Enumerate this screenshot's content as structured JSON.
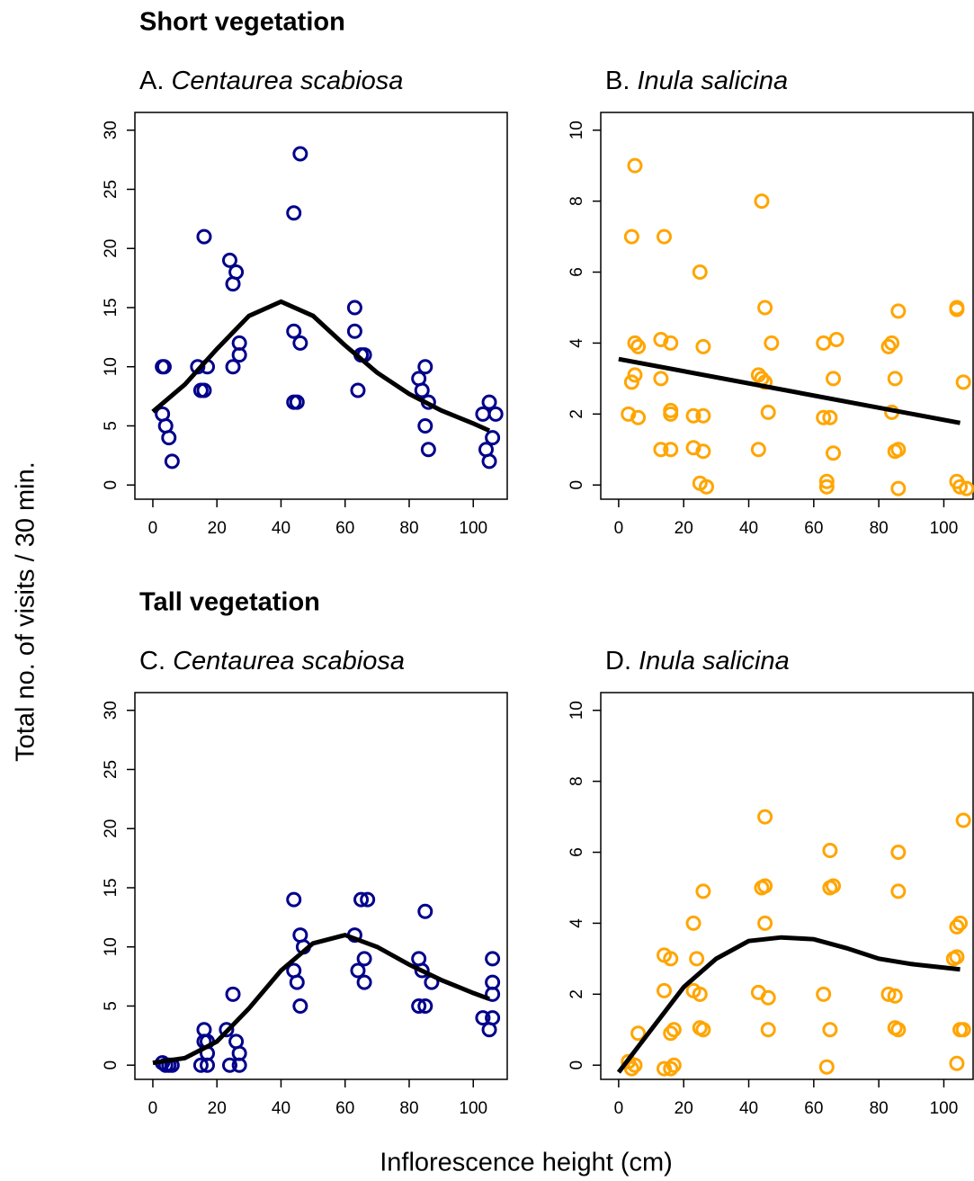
{
  "headings": [
    "Short vegetation",
    "Tall vegetation"
  ],
  "ylabel": "Total no. of visits / 30 min.",
  "xlabel": "Inflorescence height (cm)",
  "chart_data": [
    {
      "type": "scatter",
      "label": "A.",
      "title": "Centaurea scabiosa",
      "color": "#00008b",
      "x": [
        3,
        3.5,
        3,
        4,
        5,
        6,
        14,
        15,
        16,
        16,
        17,
        24,
        25,
        25,
        26,
        27,
        27,
        44,
        44,
        44,
        45,
        46,
        46,
        63,
        63,
        64,
        65,
        66,
        83,
        84,
        85,
        85,
        86,
        86,
        103,
        104,
        105,
        105,
        106,
        107
      ],
      "values": [
        10,
        10,
        6,
        5,
        4,
        2,
        10,
        8,
        21,
        8,
        10,
        19,
        17,
        10,
        18,
        12,
        11,
        23,
        13,
        7,
        7,
        28,
        12,
        15,
        13,
        8,
        11,
        11,
        9,
        8,
        5,
        10,
        3,
        7,
        6,
        3,
        7,
        2,
        4,
        6
      ],
      "fit": {
        "color": "#000000",
        "x": [
          0,
          10,
          20,
          30,
          40,
          50,
          60,
          70,
          80,
          90,
          100,
          105
        ],
        "values": [
          6.2,
          8.5,
          11.5,
          14.3,
          15.5,
          14.3,
          11.8,
          9.5,
          7.7,
          6.3,
          5.2,
          4.6
        ]
      },
      "xlim": [
        -5.6,
        110.6
      ],
      "ylim": [
        -1.2,
        31.5
      ],
      "xticks": [
        0,
        20,
        40,
        60,
        80,
        100
      ],
      "yticks": [
        0,
        5,
        10,
        15,
        20,
        25,
        30
      ]
    },
    {
      "type": "scatter",
      "label": "B.",
      "title": "Inula salicina",
      "color": "#ffa500",
      "x": [
        5,
        4,
        14,
        25,
        44,
        45,
        5,
        6,
        13,
        16,
        26,
        47,
        63,
        67,
        83,
        84,
        86,
        104,
        104,
        4,
        5,
        13,
        43,
        44,
        45,
        66,
        85,
        106,
        3,
        6,
        16,
        16,
        23,
        26,
        46,
        63,
        65,
        84,
        13,
        16,
        23,
        26,
        43,
        66,
        85,
        86,
        25,
        27,
        64,
        64,
        86,
        104,
        105,
        107
      ],
      "values": [
        9,
        7,
        7,
        6,
        8,
        5,
        4,
        3.9,
        4.1,
        4,
        3.9,
        4,
        4,
        4.1,
        3.9,
        4,
        4.9,
        5,
        4.95,
        2.9,
        3.1,
        3,
        3.1,
        3,
        2.9,
        3,
        3,
        2.9,
        2,
        1.9,
        2,
        2.1,
        1.95,
        1.95,
        2.05,
        1.9,
        1.9,
        2.05,
        1,
        1,
        1.05,
        0.95,
        1,
        0.9,
        0.95,
        1,
        0.05,
        -0.05,
        0.1,
        -0.05,
        -0.1,
        0.1,
        -0.05,
        -0.1
      ],
      "fit": {
        "color": "#000000",
        "x": [
          0,
          105
        ],
        "values": [
          3.55,
          1.75
        ]
      },
      "xlim": [
        -5.5,
        109
      ],
      "ylim": [
        -0.4,
        10.5
      ],
      "xticks": [
        0,
        20,
        40,
        60,
        80,
        100
      ],
      "yticks": [
        0,
        2,
        4,
        6,
        8,
        10
      ]
    },
    {
      "type": "scatter",
      "label": "C.",
      "title": "Centaurea scabiosa",
      "color": "#00008b",
      "x": [
        3,
        4,
        5,
        6,
        16,
        16,
        17,
        17,
        15,
        17,
        23,
        24,
        25,
        26,
        27,
        27,
        44,
        44,
        45,
        46,
        46,
        47,
        63,
        64,
        65,
        66,
        66,
        67,
        83,
        83,
        84,
        85,
        85,
        87,
        103,
        105,
        106,
        106,
        106,
        106
      ],
      "values": [
        0.2,
        0,
        0,
        0,
        3,
        2,
        1,
        2,
        0,
        0,
        3,
        0,
        6,
        2,
        1,
        0,
        14,
        8,
        7,
        5,
        11,
        10,
        11,
        8,
        14,
        9,
        7,
        14,
        9,
        5,
        8,
        13,
        5,
        7,
        4,
        3,
        9,
        7,
        6,
        4
      ],
      "fit": {
        "color": "#000000",
        "x": [
          0,
          10,
          20,
          30,
          40,
          50,
          60,
          70,
          80,
          90,
          100,
          105
        ],
        "values": [
          0.2,
          0.6,
          2,
          4.8,
          8,
          10.3,
          11,
          10,
          8.5,
          7.2,
          6.1,
          5.6
        ]
      },
      "xlim": [
        -5.6,
        110.6
      ],
      "ylim": [
        -1.2,
        31.5
      ],
      "xticks": [
        0,
        20,
        40,
        60,
        80,
        100
      ],
      "yticks": [
        0,
        5,
        10,
        15,
        20,
        25,
        30
      ]
    },
    {
      "type": "scatter",
      "label": "D.",
      "title": "Inula salicina",
      "color": "#ffa500",
      "x": [
        3,
        4,
        5,
        6,
        14,
        14,
        16,
        14,
        16,
        17,
        16,
        17,
        23,
        23,
        24,
        25,
        25,
        26,
        26,
        43,
        45,
        44,
        45,
        45,
        46,
        46,
        63,
        64,
        65,
        65,
        65,
        66,
        83,
        85,
        85,
        86,
        86,
        86,
        103,
        104,
        104,
        104,
        105,
        105,
        106,
        106
      ],
      "values": [
        0.1,
        -0.1,
        0,
        0.9,
        2.1,
        3.1,
        3,
        -0.1,
        -0.1,
        0,
        0.9,
        1,
        4,
        2.1,
        3,
        1.05,
        2,
        1,
        4.9,
        2.05,
        7,
        5,
        5.05,
        4,
        1.9,
        1,
        2,
        -0.05,
        5,
        6.05,
        1,
        5.05,
        2,
        1.05,
        1.95,
        6,
        4.9,
        1,
        3,
        3.05,
        3.9,
        0.05,
        4,
        1,
        1,
        6.9
      ],
      "fit": {
        "color": "#000000",
        "x": [
          0,
          10,
          20,
          30,
          40,
          50,
          60,
          70,
          80,
          90,
          100,
          105
        ],
        "values": [
          -0.2,
          1,
          2.2,
          3,
          3.5,
          3.6,
          3.55,
          3.3,
          3,
          2.85,
          2.75,
          2.7
        ]
      },
      "xlim": [
        -5.5,
        109
      ],
      "ylim": [
        -0.4,
        10.5
      ],
      "xticks": [
        0,
        20,
        40,
        60,
        80,
        100
      ],
      "yticks": [
        0,
        2,
        4,
        6,
        8,
        10
      ]
    }
  ]
}
